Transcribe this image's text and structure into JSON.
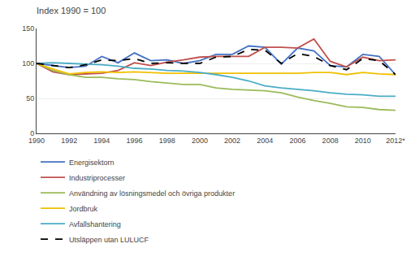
{
  "chart_data": {
    "type": "line",
    "title": "Index 1990 = 100",
    "x": [
      1990,
      1991,
      1992,
      1993,
      1994,
      1995,
      1996,
      1997,
      1998,
      1999,
      2000,
      2001,
      2002,
      2003,
      2004,
      2005,
      2006,
      2007,
      2008,
      2009,
      2010,
      2011,
      2012
    ],
    "series": [
      {
        "name": "Energisektorn",
        "color": "#4472C4",
        "line_style": "solid",
        "values": [
          100,
          97,
          94,
          96,
          110,
          101,
          115,
          104,
          105,
          100,
          104,
          113,
          113,
          125,
          123,
          99,
          122,
          118,
          97,
          95,
          113,
          110,
          84
        ]
      },
      {
        "name": "Industriprocesser",
        "color": "#C0504D",
        "line_style": "solid",
        "values": [
          100,
          88,
          84,
          85,
          86,
          90,
          101,
          97,
          102,
          105,
          109,
          110,
          110,
          110,
          123,
          123,
          122,
          135,
          103,
          95,
          109,
          104,
          105
        ]
      },
      {
        "name": "Användning av lösningsmedel och övriga produkter",
        "color": "#9BBB59",
        "line_style": "solid",
        "values": [
          100,
          90,
          84,
          80,
          80,
          78,
          77,
          74,
          72,
          70,
          70,
          65,
          63,
          62,
          61,
          58,
          52,
          47,
          43,
          38,
          37,
          34,
          33
        ]
      },
      {
        "name": "Jordbruk",
        "color": "#F0C000",
        "line_style": "solid",
        "values": [
          100,
          92,
          85,
          87,
          88,
          87,
          88,
          87,
          86,
          86,
          86,
          86,
          86,
          86,
          86,
          86,
          86,
          87,
          87,
          84,
          87,
          85,
          84
        ]
      },
      {
        "name": "Avfallshantering",
        "color": "#4BACC6",
        "line_style": "solid",
        "values": [
          100,
          101,
          100,
          99,
          98,
          96,
          93,
          92,
          90,
          89,
          87,
          84,
          80,
          75,
          68,
          65,
          63,
          61,
          58,
          56,
          55,
          53,
          53
        ]
      },
      {
        "name": "Utsläppen utan LULUCF",
        "color": "#000000",
        "line_style": "dashed",
        "values": [
          100,
          97,
          94,
          98,
          105,
          104,
          107,
          100,
          101,
          100,
          100,
          109,
          110,
          120,
          119,
          100,
          114,
          110,
          97,
          91,
          107,
          104,
          84
        ]
      }
    ],
    "xlim": [
      1990,
      2012
    ],
    "xticks": [
      1990,
      1992,
      1994,
      1996,
      1998,
      2000,
      2002,
      2004,
      2006,
      2008,
      2010,
      {
        "value": 2012,
        "label": "2012*"
      }
    ],
    "ylim": [
      0,
      150
    ],
    "yticks": [
      0,
      50,
      100,
      150
    ],
    "grid": "y",
    "legend": "bottom"
  }
}
